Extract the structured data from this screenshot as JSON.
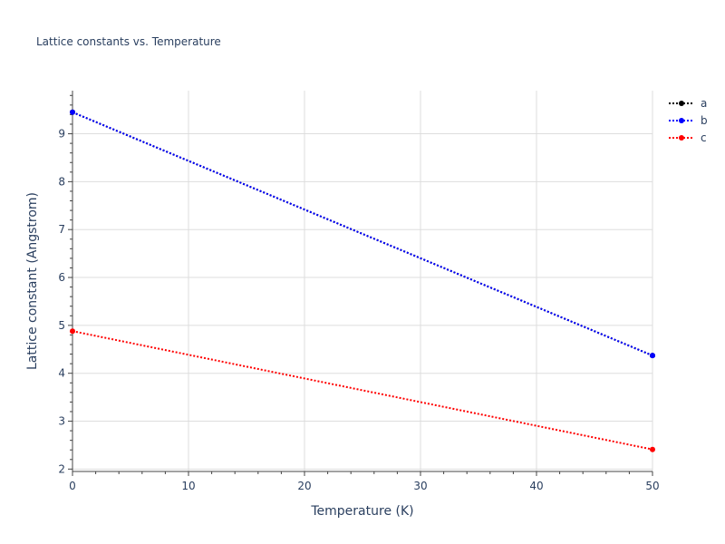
{
  "chart_data": {
    "type": "line",
    "title": "Lattice constants vs. Temperature",
    "xlabel": "Temperature (K)",
    "ylabel": "Lattice constant (Angstrom)",
    "xlim": [
      0,
      50
    ],
    "ylim": [
      1.95,
      9.9
    ],
    "xticks": [
      0,
      10,
      20,
      30,
      40,
      50
    ],
    "yticks": [
      2,
      3,
      4,
      5,
      6,
      7,
      8,
      9
    ],
    "grid": true,
    "legend_position": "top-right",
    "series": [
      {
        "name": "a",
        "color": "#000000",
        "line_style": "dotted",
        "x": [
          0,
          50
        ],
        "y": [
          9.45,
          4.37
        ]
      },
      {
        "name": "b",
        "color": "#0000ff",
        "line_style": "dotted",
        "x": [
          0,
          50
        ],
        "y": [
          9.45,
          4.37
        ]
      },
      {
        "name": "c",
        "color": "#ff0000",
        "line_style": "dotted",
        "x": [
          0,
          50
        ],
        "y": [
          4.88,
          2.41
        ]
      }
    ]
  }
}
